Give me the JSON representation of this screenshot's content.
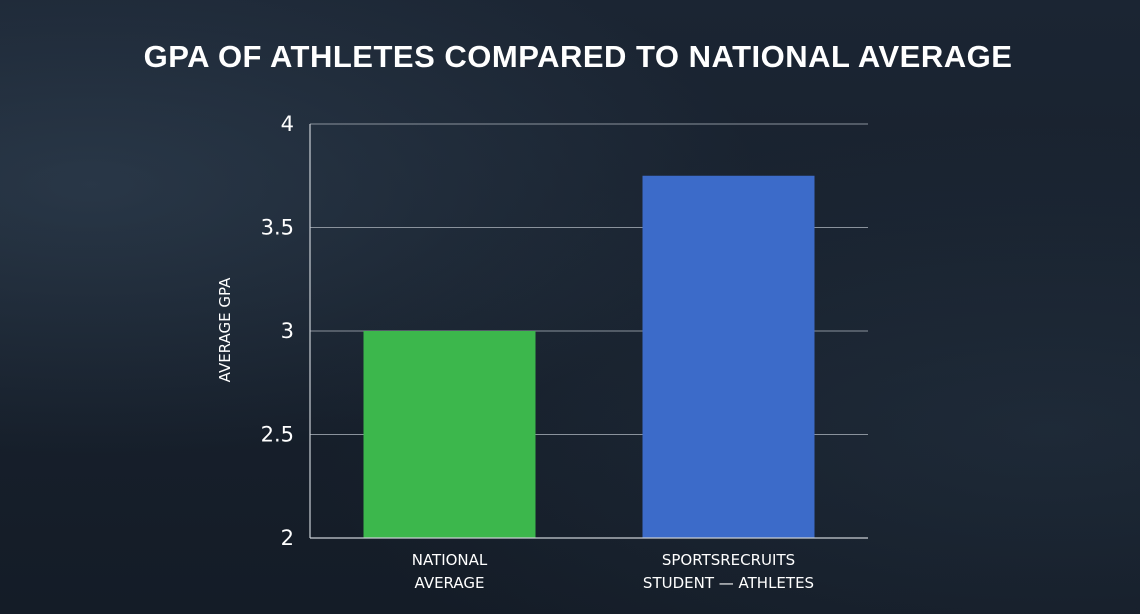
{
  "chart_data": {
    "type": "bar",
    "title": "GPA OF ATHLETES COMPARED TO NATIONAL AVERAGE",
    "xlabel": "",
    "ylabel": "AVERAGE GPA",
    "ylim": [
      2,
      4
    ],
    "yticks": [
      "2",
      "2.5",
      "3",
      "3.5",
      "4"
    ],
    "grid": true,
    "categories": [
      [
        "NATIONAL",
        "AVERAGE"
      ],
      [
        "SPORTSRECRUITS",
        "STUDENT — ATHLETES"
      ]
    ],
    "values": [
      3.0,
      3.75
    ],
    "colors": [
      "#3cb74c",
      "#3c6bc9"
    ]
  }
}
